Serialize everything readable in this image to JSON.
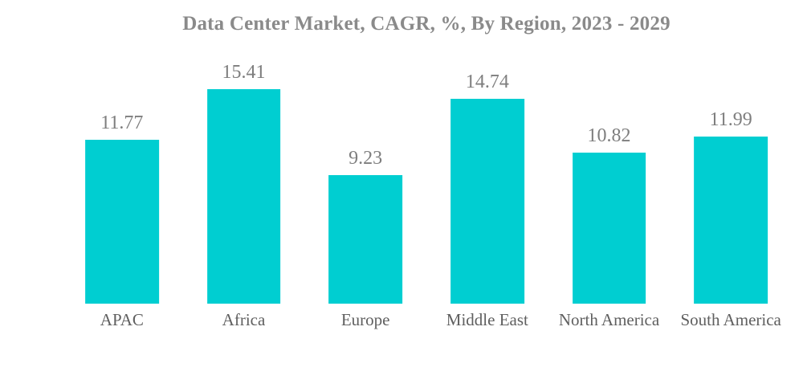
{
  "page": {
    "background": "#ffffff"
  },
  "chart_data": {
    "type": "bar",
    "title": "Data Center Market, CAGR, %, By Region, 2023 - 2029",
    "categories": [
      "APAC",
      "Africa",
      "Europe",
      "Middle East",
      "North America",
      "South America"
    ],
    "values": [
      11.77,
      15.41,
      9.23,
      14.74,
      10.82,
      11.99
    ],
    "value_labels": [
      "11.77",
      "15.41",
      "9.23",
      "14.74",
      "10.82",
      "11.99"
    ],
    "xlabel": "",
    "ylabel": "",
    "ylim": [
      0,
      16.5
    ],
    "grid": false,
    "legend": false,
    "axes_visible": false,
    "data_labels_position": "above bars",
    "bar_color": "#00CED1",
    "title_color": "#8A8A8A",
    "value_label_color": "#7E7E7E",
    "category_label_color": "#5F5F5F",
    "background_color": "#FFFFFF"
  }
}
